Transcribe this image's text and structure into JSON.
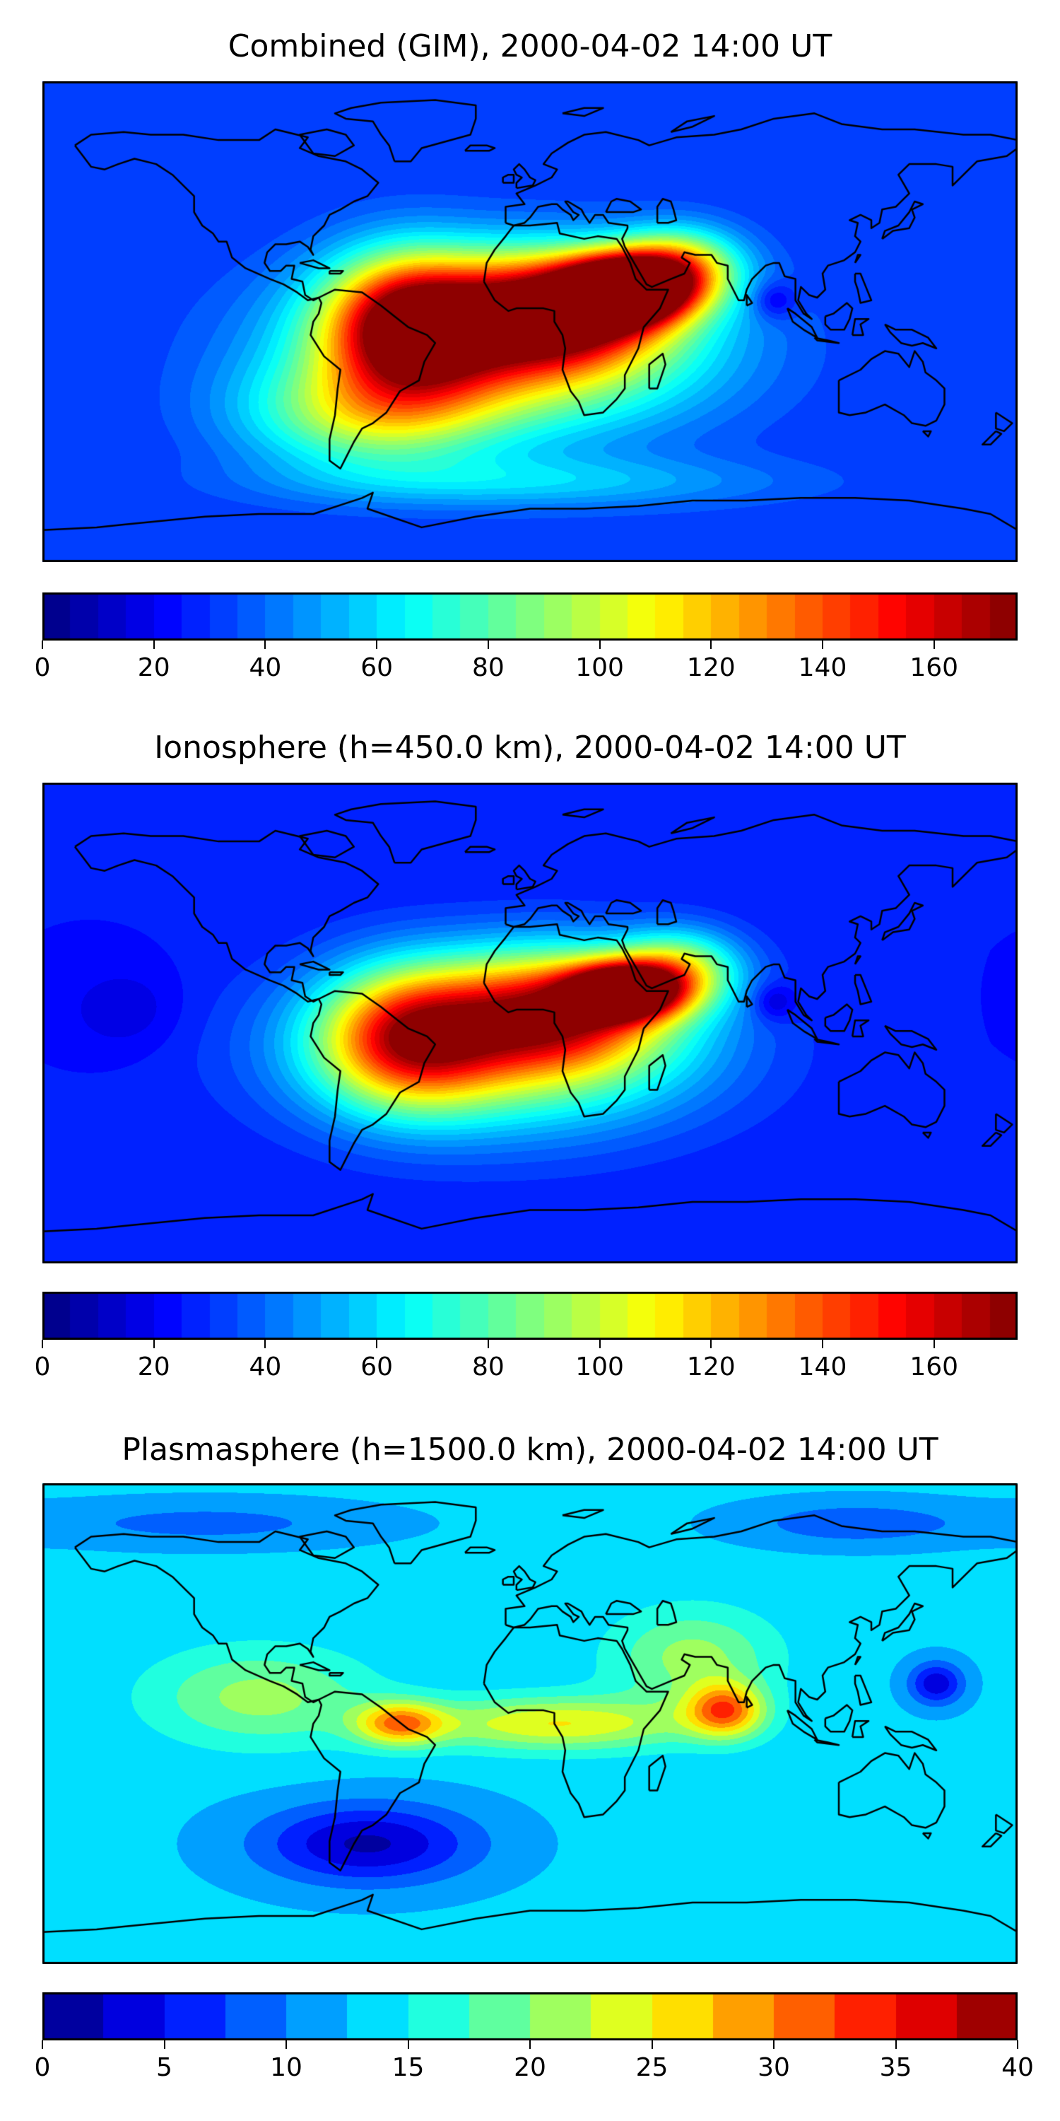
{
  "panels": [
    {
      "title": "Combined (GIM), 2000-04-02 14:00 UT",
      "vmin": 0,
      "vmax": 175,
      "levels": 35,
      "tick_values": [
        0,
        20,
        40,
        60,
        80,
        100,
        120,
        140,
        160
      ],
      "field": {
        "background": 30,
        "blobs": [
          {
            "lon": 35,
            "lat": 12,
            "peak": 165,
            "rlon": 22,
            "rlat": 12
          },
          {
            "lon": 10,
            "lat": 5,
            "peak": 120,
            "rlon": 38,
            "rlat": 20
          },
          {
            "lon": -45,
            "lat": 0,
            "peak": 115,
            "rlon": 30,
            "rlat": 25
          },
          {
            "lon": -10,
            "lat": -10,
            "peak": 90,
            "rlon": 70,
            "rlat": 30
          },
          {
            "lon": 55,
            "lat": 20,
            "peak": 80,
            "rlon": 22,
            "rlat": 14
          },
          {
            "lon": -60,
            "lat": -35,
            "peak": 55,
            "rlon": 45,
            "rlat": 20
          },
          {
            "lon": 90,
            "lat": 8,
            "peak": -20,
            "rlon": 8,
            "rlat": 7
          },
          {
            "lon": 0,
            "lat": -60,
            "peak": 25,
            "rlon": 90,
            "rlat": 10
          }
        ]
      }
    },
    {
      "title": "Ionosphere  (h=450.0 km), 2000-04-02 14:00 UT",
      "vmin": 0,
      "vmax": 175,
      "levels": 35,
      "tick_values": [
        0,
        20,
        40,
        60,
        80,
        100,
        120,
        140,
        160
      ],
      "field": {
        "background": 25,
        "blobs": [
          {
            "lon": 35,
            "lat": 12,
            "peak": 145,
            "rlon": 20,
            "rlat": 10
          },
          {
            "lon": 10,
            "lat": 5,
            "peak": 100,
            "rlon": 40,
            "rlat": 22
          },
          {
            "lon": -45,
            "lat": -5,
            "peak": 95,
            "rlon": 32,
            "rlat": 25
          },
          {
            "lon": -10,
            "lat": -10,
            "peak": 70,
            "rlon": 70,
            "rlat": 30
          },
          {
            "lon": 55,
            "lat": 20,
            "peak": 65,
            "rlon": 22,
            "rlat": 14
          },
          {
            "lon": 90,
            "lat": 8,
            "peak": -18,
            "rlon": 8,
            "rlat": 7
          },
          {
            "lon": -150,
            "lat": 5,
            "peak": -10,
            "rlon": 20,
            "rlat": 15
          }
        ]
      }
    },
    {
      "title": "Plasmasphere (h=1500.0 km), 2000-04-02 14:00 UT",
      "vmin": 0,
      "vmax": 40,
      "levels": 16,
      "tick_values": [
        0,
        5,
        10,
        15,
        20,
        25,
        30,
        35,
        40
      ],
      "field": {
        "background": 13,
        "blobs": [
          {
            "lon": 72,
            "lat": 5,
            "peak": 17,
            "rlon": 14,
            "rlat": 10
          },
          {
            "lon": -48,
            "lat": 0,
            "peak": 15,
            "rlon": 16,
            "rlat": 8
          },
          {
            "lon": 10,
            "lat": 0,
            "peak": 12,
            "rlon": 50,
            "rlat": 10
          },
          {
            "lon": -100,
            "lat": 10,
            "peak": 8,
            "rlon": 40,
            "rlat": 18
          },
          {
            "lon": 60,
            "lat": 25,
            "peak": 8,
            "rlon": 30,
            "rlat": 18
          },
          {
            "lon": 150,
            "lat": 15,
            "peak": -10,
            "rlon": 10,
            "rlat": 8
          },
          {
            "lon": -60,
            "lat": -45,
            "peak": -11,
            "rlon": 40,
            "rlat": 15
          },
          {
            "lon": -120,
            "lat": 75,
            "peak": -4,
            "rlon": 60,
            "rlat": 8
          },
          {
            "lon": 120,
            "lat": 75,
            "peak": -5,
            "rlon": 40,
            "rlat": 8
          }
        ]
      }
    }
  ],
  "colors": {
    "jet": [
      "#00007f",
      "#0000ff",
      "#007fff",
      "#00ffff",
      "#7fff7f",
      "#ffff00",
      "#ff7f00",
      "#ff0000",
      "#7f0000"
    ],
    "coastline": "#000000"
  }
}
